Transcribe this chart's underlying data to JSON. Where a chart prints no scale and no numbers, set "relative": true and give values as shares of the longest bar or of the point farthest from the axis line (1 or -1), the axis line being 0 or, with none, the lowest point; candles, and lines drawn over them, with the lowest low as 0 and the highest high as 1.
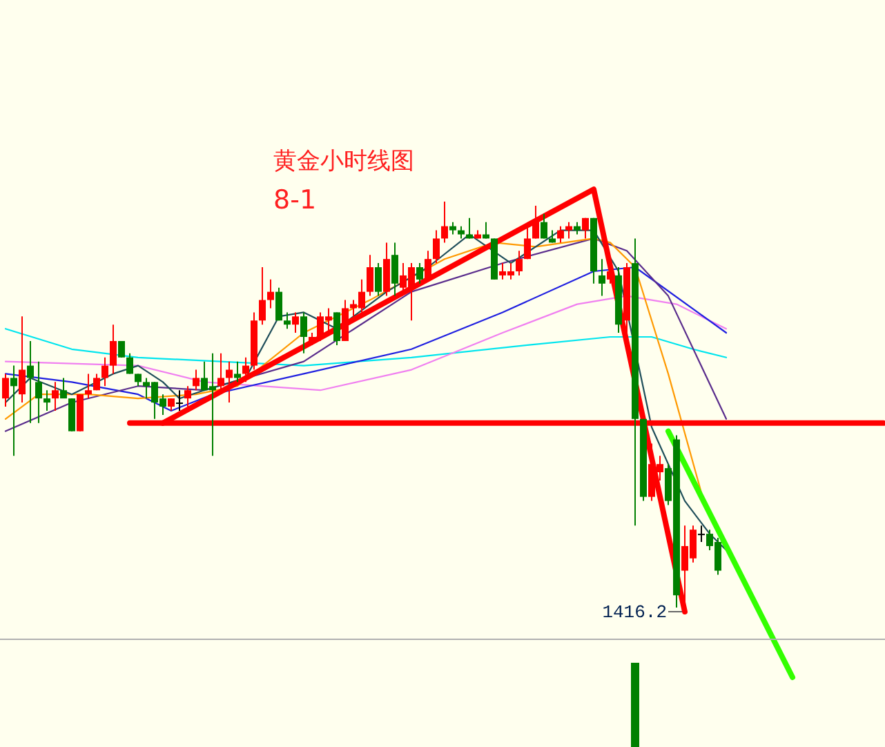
{
  "chart_data": [
    {
      "type": "candlestick",
      "relative": true,
      "title": "黄金小时线图",
      "subtitle": "8-1",
      "categories": [
        null,
        null,
        null,
        null,
        null,
        null,
        null,
        null,
        null,
        null,
        null,
        null,
        null,
        null,
        null,
        null,
        null,
        null,
        null,
        null,
        null,
        null,
        null,
        null,
        null,
        null,
        null,
        null,
        null,
        null,
        null,
        null,
        null,
        null,
        null,
        null,
        null,
        null,
        null,
        null,
        null,
        null,
        null,
        null,
        null,
        null,
        null,
        null,
        null,
        null,
        null,
        null,
        null,
        null,
        null,
        null,
        null,
        null,
        null,
        null,
        null,
        null,
        null,
        null,
        null,
        null,
        null,
        null,
        null,
        null,
        null,
        null,
        null,
        null,
        null,
        null,
        null,
        null,
        null,
        null,
        null,
        null,
        null,
        null,
        null,
        null,
        null,
        null,
        null,
        null,
        null,
        null,
        null,
        null,
        null,
        null,
        null,
        null,
        null,
        null,
        null,
        null,
        null,
        null,
        null,
        null,
        null
      ],
      "ohlc": [
        [
          0.52,
          0.58,
          0.5,
          0.57
        ],
        [
          0.57,
          0.6,
          0.38,
          0.55
        ],
        [
          0.53,
          0.72,
          0.51,
          0.59
        ],
        [
          0.6,
          0.66,
          0.46,
          0.57
        ],
        [
          0.56,
          0.61,
          0.46,
          0.52
        ],
        [
          0.52,
          0.54,
          0.49,
          0.51
        ],
        [
          0.52,
          0.56,
          0.49,
          0.54
        ],
        [
          0.54,
          0.57,
          0.52,
          0.52
        ],
        [
          0.52,
          0.52,
          0.44,
          0.44
        ],
        [
          0.44,
          0.53,
          0.44,
          0.53
        ],
        [
          0.53,
          0.58,
          0.52,
          0.54
        ],
        [
          0.54,
          0.58,
          0.54,
          0.57
        ],
        [
          0.57,
          0.62,
          0.55,
          0.6
        ],
        [
          0.6,
          0.7,
          0.58,
          0.66
        ],
        [
          0.66,
          0.66,
          0.62,
          0.62
        ],
        [
          0.62,
          0.63,
          0.58,
          0.58
        ],
        [
          0.58,
          0.58,
          0.55,
          0.56
        ],
        [
          0.56,
          0.57,
          0.52,
          0.55
        ],
        [
          0.56,
          0.56,
          0.47,
          0.51
        ],
        [
          0.52,
          0.53,
          0.48,
          0.5
        ],
        [
          0.5,
          0.52,
          0.49,
          0.52
        ],
        [
          0.51,
          0.54,
          0.49,
          0.51
        ],
        [
          0.52,
          0.55,
          0.5,
          0.54
        ],
        [
          0.55,
          0.59,
          0.54,
          0.57
        ],
        [
          0.57,
          0.61,
          0.54,
          0.54
        ],
        [
          0.55,
          0.63,
          0.38,
          0.54
        ],
        [
          0.55,
          0.63,
          0.54,
          0.57
        ],
        [
          0.57,
          0.61,
          0.51,
          0.59
        ],
        [
          0.58,
          0.61,
          0.56,
          0.57
        ],
        [
          0.58,
          0.62,
          0.56,
          0.6
        ],
        [
          0.6,
          0.73,
          0.59,
          0.71
        ],
        [
          0.71,
          0.84,
          0.7,
          0.76
        ],
        [
          0.76,
          0.81,
          0.74,
          0.78
        ],
        [
          0.78,
          0.79,
          0.71,
          0.71
        ],
        [
          0.71,
          0.73,
          0.69,
          0.7
        ],
        [
          0.7,
          0.73,
          0.68,
          0.72
        ],
        [
          0.72,
          0.73,
          0.63,
          0.67
        ],
        [
          0.66,
          0.68,
          0.65,
          0.67
        ],
        [
          0.67,
          0.73,
          0.66,
          0.72
        ],
        [
          0.71,
          0.74,
          0.68,
          0.72
        ],
        [
          0.73,
          0.73,
          0.65,
          0.66
        ],
        [
          0.66,
          0.76,
          0.66,
          0.74
        ],
        [
          0.74,
          0.76,
          0.72,
          0.75
        ],
        [
          0.74,
          0.81,
          0.73,
          0.78
        ],
        [
          0.78,
          0.87,
          0.77,
          0.84
        ],
        [
          0.84,
          0.85,
          0.77,
          0.78
        ],
        [
          0.78,
          0.9,
          0.77,
          0.86
        ],
        [
          0.87,
          0.9,
          0.77,
          0.8
        ],
        [
          0.79,
          0.85,
          0.78,
          0.82
        ],
        [
          0.79,
          0.85,
          0.71,
          0.84
        ],
        [
          0.84,
          0.85,
          0.8,
          0.81
        ],
        [
          0.81,
          0.88,
          0.81,
          0.86
        ],
        [
          0.86,
          0.93,
          0.85,
          0.91
        ],
        [
          0.91,
          1.0,
          0.9,
          0.94
        ],
        [
          0.94,
          0.95,
          0.92,
          0.93
        ],
        [
          0.93,
          0.94,
          0.91,
          0.92
        ],
        [
          0.92,
          0.96,
          0.91,
          0.91
        ],
        [
          0.91,
          0.93,
          0.91,
          0.92
        ],
        [
          0.92,
          0.95,
          0.91,
          0.91
        ],
        [
          0.91,
          0.91,
          0.81,
          0.81
        ],
        [
          0.82,
          0.85,
          0.81,
          0.83
        ],
        [
          0.82,
          0.85,
          0.81,
          0.83
        ],
        [
          0.83,
          0.88,
          0.82,
          0.86
        ],
        [
          0.86,
          0.94,
          0.86,
          0.91
        ],
        [
          0.91,
          0.99,
          0.91,
          0.95
        ],
        [
          0.95,
          0.97,
          0.91,
          0.91
        ],
        [
          0.91,
          0.93,
          0.9,
          0.9
        ],
        [
          0.91,
          0.94,
          0.9,
          0.93
        ],
        [
          0.93,
          0.95,
          0.91,
          0.94
        ],
        [
          0.94,
          0.95,
          0.92,
          0.93
        ],
        [
          0.93,
          0.96,
          0.91,
          0.96
        ],
        [
          0.96,
          0.96,
          0.8,
          0.83
        ],
        [
          0.82,
          0.86,
          0.77,
          0.8
        ],
        [
          0.81,
          0.85,
          0.8,
          0.83
        ],
        [
          0.82,
          0.84,
          0.68,
          0.7
        ],
        [
          0.71,
          0.85,
          0.67,
          0.84
        ],
        [
          0.85,
          0.91,
          0.21,
          0.47
        ],
        [
          0.47,
          0.47,
          0.27,
          0.28
        ],
        [
          0.28,
          0.41,
          0.27,
          0.36
        ],
        [
          0.34,
          0.38,
          0.32,
          0.36
        ],
        [
          0.35,
          0.36,
          0.26,
          0.27
        ],
        [
          0.42,
          0.43,
          0.01,
          0.04
        ],
        [
          0.1,
          0.21,
          0.0,
          0.16
        ],
        [
          0.13,
          0.21,
          0.12,
          0.2
        ],
        [
          0.19,
          0.21,
          0.17,
          0.19
        ],
        [
          0.19,
          0.2,
          0.15,
          0.16
        ],
        [
          0.17,
          0.18,
          0.09,
          0.1
        ],
        null,
        null,
        null,
        null,
        null,
        null,
        null,
        null,
        null,
        null,
        null,
        null,
        null,
        null,
        null,
        null,
        null,
        null,
        null,
        null
      ],
      "series": [
        {
          "type": "line",
          "color": "#00e5ee",
          "values": [
            0.69,
            null,
            null,
            null,
            null,
            null,
            null,
            null,
            0.64,
            null,
            null,
            null,
            null,
            null,
            null,
            null,
            0.62,
            null,
            null,
            null,
            null,
            null,
            null,
            null,
            null,
            null,
            null,
            null,
            null,
            null,
            null,
            null,
            null,
            null,
            null,
            null,
            0.6,
            null,
            null,
            null,
            null,
            null,
            null,
            null,
            null,
            null,
            null,
            null,
            null,
            0.62,
            null,
            null,
            null,
            null,
            null,
            null,
            null,
            null,
            null,
            null,
            null,
            null,
            null,
            0.65,
            null,
            null,
            null,
            null,
            null,
            null,
            null,
            null,
            null,
            0.67,
            null,
            null,
            null,
            null,
            0.67,
            null,
            null,
            null,
            null,
            0.64,
            null,
            null,
            null,
            0.62,
            null,
            null,
            null,
            null,
            null,
            null,
            null,
            null,
            null,
            null,
            null,
            null,
            null,
            null,
            null,
            null,
            null,
            null,
            null
          ]
        },
        {
          "type": "line",
          "color": "#f080f0",
          "values": [
            0.61,
            null,
            null,
            null,
            null,
            null,
            null,
            null,
            null,
            null,
            null,
            null,
            null,
            null,
            null,
            null,
            0.6,
            null,
            null,
            null,
            null,
            null,
            null,
            null,
            0.56,
            null,
            null,
            null,
            null,
            null,
            null,
            null,
            null,
            null,
            null,
            null,
            null,
            null,
            0.54,
            null,
            null,
            null,
            null,
            null,
            null,
            null,
            null,
            null,
            null,
            0.59,
            null,
            null,
            null,
            null,
            null,
            null,
            null,
            null,
            null,
            null,
            0.68,
            null,
            null,
            null,
            null,
            null,
            null,
            null,
            null,
            0.75,
            null,
            null,
            null,
            null,
            null,
            0.77,
            null,
            null,
            null,
            null,
            null,
            0.75,
            null,
            null,
            null,
            null,
            null,
            0.69,
            null,
            null,
            null,
            null,
            null,
            null,
            null,
            null,
            null,
            null,
            null,
            null,
            null,
            null,
            null,
            null,
            null,
            null,
            null
          ]
        },
        {
          "type": "line",
          "color": "#2020e0",
          "values": [
            0.58,
            null,
            null,
            null,
            null,
            null,
            null,
            null,
            0.56,
            null,
            null,
            null,
            null,
            null,
            null,
            null,
            0.53,
            null,
            null,
            null,
            0.49,
            null,
            null,
            null,
            null,
            0.53,
            null,
            null,
            null,
            null,
            null,
            null,
            null,
            null,
            null,
            null,
            0.58,
            null,
            null,
            null,
            null,
            null,
            null,
            null,
            null,
            null,
            null,
            null,
            null,
            0.64,
            null,
            null,
            null,
            null,
            null,
            null,
            null,
            null,
            null,
            null,
            0.73,
            null,
            null,
            null,
            null,
            null,
            null,
            null,
            null,
            null,
            null,
            0.83,
            null,
            null,
            null,
            null,
            0.84,
            null,
            null,
            null,
            null,
            null,
            null,
            null,
            null,
            null,
            null,
            0.68,
            null,
            null,
            null,
            null,
            null,
            null,
            null,
            null,
            null,
            null,
            null,
            null,
            null,
            null,
            null,
            null,
            null,
            null,
            null
          ]
        },
        {
          "type": "line",
          "color": "#5a2d8c",
          "values": [
            0.44,
            null,
            null,
            null,
            null,
            null,
            null,
            null,
            0.51,
            null,
            null,
            null,
            null,
            null,
            null,
            null,
            0.55,
            null,
            null,
            null,
            null,
            null,
            null,
            null,
            0.54,
            null,
            null,
            null,
            null,
            null,
            null,
            null,
            null,
            null,
            null,
            null,
            0.61,
            null,
            null,
            null,
            null,
            null,
            null,
            null,
            null,
            null,
            null,
            null,
            null,
            0.78,
            null,
            null,
            null,
            null,
            null,
            null,
            null,
            null,
            null,
            null,
            0.85,
            null,
            null,
            null,
            null,
            null,
            null,
            null,
            null,
            null,
            null,
            0.91,
            null,
            null,
            null,
            0.88,
            null,
            null,
            null,
            null,
            0.77,
            null,
            null,
            null,
            null,
            null,
            null,
            0.47,
            null,
            null,
            null,
            null,
            null,
            null,
            null,
            null,
            null,
            null,
            null,
            null,
            null,
            null,
            null,
            null,
            null,
            null,
            null
          ]
        },
        {
          "type": "line",
          "color": "#ff9900",
          "values": [
            0.47,
            null,
            null,
            null,
            0.53,
            null,
            null,
            null,
            null,
            null,
            0.53,
            null,
            null,
            null,
            null,
            null,
            0.52,
            null,
            null,
            null,
            null,
            null,
            null,
            0.53,
            null,
            null,
            null,
            null,
            0.55,
            null,
            null,
            null,
            null,
            null,
            null,
            null,
            0.68,
            null,
            null,
            null,
            null,
            null,
            null,
            null,
            0.76,
            null,
            null,
            null,
            null,
            null,
            null,
            null,
            null,
            0.86,
            null,
            null,
            null,
            null,
            null,
            0.9,
            null,
            null,
            null,
            null,
            0.89,
            null,
            null,
            null,
            null,
            null,
            null,
            0.91,
            null,
            0.9,
            null,
            null,
            0.84,
            null,
            null,
            null,
            0.58,
            null,
            null,
            null,
            0.29,
            null,
            null,
            null,
            null,
            null,
            null,
            null,
            null,
            null,
            null,
            null,
            null,
            null,
            null,
            null,
            null,
            null,
            null,
            null,
            null,
            null,
            null
          ]
        },
        {
          "type": "line",
          "color": "#1f4e5a",
          "values": [
            0.51,
            null,
            null,
            0.57,
            null,
            null,
            null,
            null,
            0.53,
            null,
            null,
            null,
            null,
            0.58,
            null,
            null,
            0.6,
            null,
            null,
            0.56,
            null,
            0.52,
            null,
            null,
            0.54,
            null,
            null,
            null,
            null,
            0.57,
            null,
            null,
            null,
            0.72,
            null,
            null,
            0.73,
            null,
            null,
            null,
            0.69,
            null,
            null,
            null,
            null,
            null,
            0.78,
            null,
            null,
            null,
            null,
            0.84,
            null,
            null,
            null,
            null,
            0.92,
            null,
            null,
            null,
            null,
            0.85,
            null,
            null,
            null,
            null,
            null,
            0.93,
            null,
            null,
            null,
            0.93,
            null,
            null,
            0.83,
            null,
            null,
            null,
            0.45,
            null,
            null,
            null,
            0.27,
            null,
            null,
            0.19,
            null,
            0.15,
            null,
            null,
            null,
            null,
            null,
            null,
            null,
            null,
            null,
            null,
            null,
            null,
            null,
            null,
            null,
            null,
            null,
            null,
            null
          ]
        },
        {
          "type": "line",
          "color": "#ff0000",
          "values": [
            null,
            null,
            null,
            null,
            null,
            null,
            null,
            null,
            null,
            null,
            null,
            null,
            null,
            null,
            null,
            0.46,
            null,
            null,
            null,
            null,
            null,
            null,
            null,
            null,
            null,
            null,
            null,
            null,
            null,
            null,
            null,
            null,
            null,
            null,
            null,
            null,
            null,
            null,
            null,
            null,
            null,
            null,
            null,
            null,
            null,
            null,
            null,
            null,
            null,
            null,
            null,
            null,
            null,
            null,
            null,
            null,
            null,
            null,
            null,
            null,
            null,
            null,
            null,
            null,
            null,
            null,
            null,
            null,
            null,
            null,
            null,
            null,
            null,
            null,
            null,
            null,
            null,
            null,
            null,
            null,
            null,
            null,
            null,
            null,
            null,
            null,
            null,
            null,
            null,
            null,
            null,
            null,
            null,
            null,
            null,
            null,
            null,
            null,
            null,
            null,
            null,
            null,
            null,
            null,
            null,
            null,
            0.46
          ]
        },
        {
          "type": "line",
          "color": "#ff0000",
          "values": [
            null,
            null,
            null,
            null,
            null,
            null,
            null,
            null,
            null,
            null,
            null,
            null,
            null,
            null,
            null,
            null,
            null,
            null,
            null,
            0.46,
            null,
            null,
            null,
            null,
            null,
            null,
            null,
            null,
            null,
            null,
            null,
            null,
            null,
            null,
            null,
            null,
            null,
            null,
            null,
            null,
            null,
            null,
            null,
            null,
            null,
            null,
            null,
            null,
            null,
            null,
            null,
            null,
            null,
            null,
            null,
            null,
            null,
            null,
            null,
            null,
            null,
            null,
            null,
            null,
            null,
            null,
            null,
            null,
            null,
            null,
            null,
            1.03,
            null,
            null,
            null,
            null,
            null,
            null,
            null,
            null,
            null,
            null,
            0.0,
            null,
            null,
            null,
            null,
            null,
            null,
            null,
            null,
            null,
            null,
            null,
            null,
            null,
            null,
            null,
            null,
            null,
            null,
            null,
            null,
            null,
            null,
            null,
            null
          ]
        },
        {
          "type": "line",
          "color": "#33ff00",
          "values": [
            null,
            null,
            null,
            null,
            null,
            null,
            null,
            null,
            null,
            null,
            null,
            null,
            null,
            null,
            null,
            null,
            null,
            null,
            null,
            null,
            null,
            null,
            null,
            null,
            null,
            null,
            null,
            null,
            null,
            null,
            null,
            null,
            null,
            null,
            null,
            null,
            null,
            null,
            null,
            null,
            null,
            null,
            null,
            null,
            null,
            null,
            null,
            null,
            null,
            null,
            null,
            null,
            null,
            null,
            null,
            null,
            null,
            null,
            null,
            null,
            null,
            null,
            null,
            null,
            null,
            null,
            null,
            null,
            null,
            null,
            null,
            null,
            null,
            null,
            null,
            null,
            null,
            null,
            null,
            null,
            0.44,
            null,
            null,
            null,
            null,
            null,
            null,
            null,
            null,
            null,
            null,
            null,
            null,
            null,
            null,
            -0.16,
            null,
            null,
            null,
            null,
            null,
            null,
            null,
            null,
            null,
            null,
            null
          ]
        }
      ],
      "annotations": [
        "1416.2"
      ]
    },
    {
      "type": "bar",
      "relative": true,
      "color": "#008000",
      "categories": [
        null,
        null,
        null,
        null,
        null,
        null,
        null,
        null,
        null,
        null,
        null,
        null,
        null,
        null,
        null,
        null,
        null,
        null,
        null,
        null,
        null,
        null,
        null,
        null,
        null,
        null,
        null,
        null,
        null,
        null,
        null,
        null,
        null,
        null,
        null,
        null,
        null,
        null,
        null,
        null,
        null,
        null,
        null,
        null,
        null,
        null,
        null,
        null,
        null,
        null,
        null,
        null,
        null,
        null,
        null,
        null,
        null,
        null,
        null,
        null,
        null,
        null,
        null,
        null,
        null,
        null,
        null,
        null,
        null,
        null,
        null,
        null,
        null,
        null,
        null,
        null,
        null,
        null,
        null,
        null,
        null,
        null,
        null,
        null,
        null,
        null,
        null,
        null,
        null,
        null,
        null,
        null,
        null,
        null,
        null,
        null,
        null,
        null,
        null,
        null,
        null,
        null,
        null,
        null,
        null,
        null,
        null
      ],
      "values": [
        null,
        null,
        null,
        null,
        null,
        null,
        null,
        null,
        null,
        null,
        null,
        null,
        null,
        null,
        null,
        null,
        null,
        null,
        null,
        null,
        null,
        null,
        null,
        null,
        null,
        null,
        null,
        null,
        null,
        null,
        null,
        null,
        null,
        null,
        null,
        null,
        null,
        null,
        null,
        null,
        null,
        null,
        null,
        null,
        null,
        null,
        null,
        null,
        null,
        null,
        null,
        null,
        null,
        null,
        null,
        null,
        null,
        null,
        null,
        null,
        null,
        null,
        null,
        null,
        null,
        null,
        null,
        null,
        null,
        null,
        null,
        null,
        null,
        null,
        null,
        null,
        1,
        null,
        null,
        null,
        null,
        null,
        null,
        null,
        null,
        null,
        null,
        null,
        null,
        null,
        null,
        null,
        null,
        null,
        null,
        null,
        null,
        null,
        null,
        null,
        null,
        null,
        null,
        null,
        null,
        null,
        null
      ]
    }
  ]
}
